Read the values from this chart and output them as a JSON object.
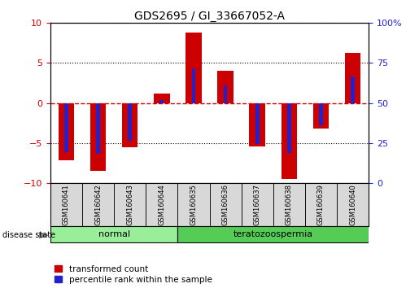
{
  "title": "GDS2695 / GI_33667052-A",
  "samples": [
    "GSM160641",
    "GSM160642",
    "GSM160643",
    "GSM160644",
    "GSM160635",
    "GSM160636",
    "GSM160637",
    "GSM160638",
    "GSM160639",
    "GSM160640"
  ],
  "groups": [
    "normal",
    "normal",
    "normal",
    "normal",
    "teratozoospermia",
    "teratozoospermia",
    "teratozoospermia",
    "teratozoospermia",
    "teratozoospermia",
    "teratozoospermia"
  ],
  "transformed_count": [
    -7.2,
    -8.5,
    -5.5,
    1.2,
    8.8,
    4.0,
    -5.4,
    -9.5,
    -3.2,
    6.3
  ],
  "percentile_rank_pos": [
    -6.2,
    -6.4,
    -4.7,
    0.4,
    4.3,
    2.2,
    -5.1,
    -6.3,
    -2.8,
    3.3
  ],
  "ylim": [
    -10,
    10
  ],
  "yticks_left": [
    -10,
    -5,
    0,
    5,
    10
  ],
  "right_tick_positions": [
    -10,
    -5,
    0,
    5,
    10
  ],
  "right_tick_labels": [
    "0",
    "25",
    "50",
    "75",
    "100%"
  ],
  "bar_color": "#cc0000",
  "blue_color": "#2222cc",
  "normal_color": "#99ee99",
  "terato_color": "#55cc55",
  "bg_color": "#ffffff",
  "grid_color": "#000000",
  "zero_line_color": "#cc0000",
  "tick_color_left": "#cc0000",
  "tick_color_right": "#2222cc",
  "bar_width": 0.5,
  "blue_bar_width": 0.12,
  "legend_red": "transformed count",
  "legend_blue": "percentile rank within the sample",
  "label_disease": "disease state",
  "group_labels": [
    "normal",
    "teratozoospermia"
  ],
  "sample_label_fontsize": 6,
  "group_label_fontsize": 8,
  "title_fontsize": 10,
  "tick_fontsize": 8,
  "legend_fontsize": 7.5
}
